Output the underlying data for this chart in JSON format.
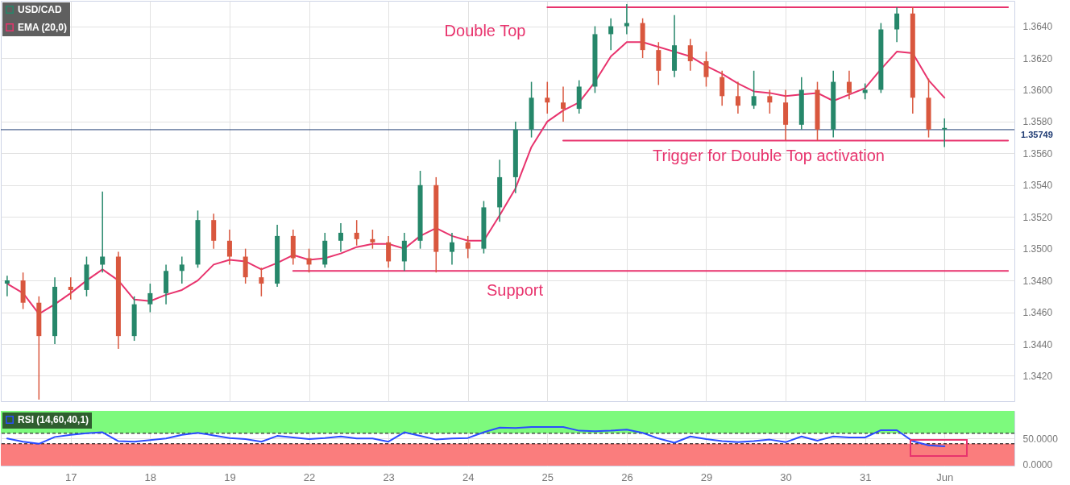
{
  "chart_data": [
    {
      "type": "candlestick",
      "series": [
        {
          "name": "USD/CAD",
          "color": "#26876a",
          "ohlc": [
            [
              1.3478,
              1.3483,
              1.347,
              1.348
            ],
            [
              1.348,
              1.3485,
              1.3462,
              1.3466
            ],
            [
              1.3466,
              1.347,
              1.3405,
              1.3445
            ],
            [
              1.3445,
              1.3482,
              1.344,
              1.3476
            ],
            [
              1.3476,
              1.3482,
              1.3468,
              1.3474
            ],
            [
              1.3474,
              1.3495,
              1.347,
              1.349
            ],
            [
              1.349,
              1.3536,
              1.3485,
              1.3495
            ],
            [
              1.3495,
              1.3498,
              1.3437,
              1.3445
            ],
            [
              1.3445,
              1.347,
              1.3442,
              1.3465
            ],
            [
              1.3465,
              1.3478,
              1.346,
              1.3472
            ],
            [
              1.3472,
              1.349,
              1.3465,
              1.3486
            ],
            [
              1.3486,
              1.3495,
              1.3478,
              1.349
            ],
            [
              1.349,
              1.3524,
              1.3488,
              1.3518
            ],
            [
              1.3518,
              1.3522,
              1.35,
              1.3505
            ],
            [
              1.3505,
              1.3512,
              1.349,
              1.3495
            ],
            [
              1.3495,
              1.35,
              1.3478,
              1.3482
            ],
            [
              1.3482,
              1.3488,
              1.347,
              1.3478
            ],
            [
              1.3478,
              1.3515,
              1.3476,
              1.3508
            ],
            [
              1.3508,
              1.3512,
              1.349,
              1.3494
            ],
            [
              1.3494,
              1.35,
              1.3485,
              1.349
            ],
            [
              1.349,
              1.351,
              1.3488,
              1.3505
            ],
            [
              1.3505,
              1.3516,
              1.3498,
              1.351
            ],
            [
              1.351,
              1.3518,
              1.3502,
              1.3506
            ],
            [
              1.3506,
              1.3512,
              1.35,
              1.3504
            ],
            [
              1.3504,
              1.3508,
              1.3488,
              1.3492
            ],
            [
              1.3492,
              1.351,
              1.3486,
              1.3505
            ],
            [
              1.3505,
              1.3549,
              1.35,
              1.354
            ],
            [
              1.354,
              1.3545,
              1.3485,
              1.3498
            ],
            [
              1.3498,
              1.351,
              1.349,
              1.3504
            ],
            [
              1.3504,
              1.3508,
              1.3494,
              1.35
            ],
            [
              1.35,
              1.353,
              1.3497,
              1.3526
            ],
            [
              1.3526,
              1.3556,
              1.3517,
              1.3545
            ],
            [
              1.3545,
              1.358,
              1.3535,
              1.3575
            ],
            [
              1.3575,
              1.3605,
              1.357,
              1.3595
            ],
            [
              1.3595,
              1.3605,
              1.3585,
              1.3592
            ],
            [
              1.3592,
              1.3602,
              1.358,
              1.3588
            ],
            [
              1.3588,
              1.3606,
              1.3585,
              1.3602
            ],
            [
              1.3602,
              1.364,
              1.3598,
              1.3635
            ],
            [
              1.3635,
              1.3645,
              1.3625,
              1.364
            ],
            [
              1.364,
              1.3654,
              1.3635,
              1.3642
            ],
            [
              1.3642,
              1.3645,
              1.362,
              1.3625
            ],
            [
              1.3625,
              1.363,
              1.3603,
              1.3612
            ],
            [
              1.3612,
              1.3647,
              1.3608,
              1.3628
            ],
            [
              1.3628,
              1.3632,
              1.3612,
              1.3618
            ],
            [
              1.3618,
              1.3624,
              1.3602,
              1.3608
            ],
            [
              1.3608,
              1.3612,
              1.359,
              1.3596
            ],
            [
              1.3596,
              1.3605,
              1.3585,
              1.359
            ],
            [
              1.359,
              1.3612,
              1.3588,
              1.3596
            ],
            [
              1.3596,
              1.36,
              1.3585,
              1.3592
            ],
            [
              1.3592,
              1.36,
              1.3568,
              1.3578
            ],
            [
              1.3578,
              1.3608,
              1.3575,
              1.36
            ],
            [
              1.36,
              1.3605,
              1.3568,
              1.3575
            ],
            [
              1.3575,
              1.3612,
              1.357,
              1.3605
            ],
            [
              1.3605,
              1.3612,
              1.3594,
              1.3598
            ],
            [
              1.3598,
              1.3604,
              1.3594,
              1.36
            ],
            [
              1.36,
              1.3642,
              1.3598,
              1.3638
            ],
            [
              1.3638,
              1.3652,
              1.363,
              1.3648
            ],
            [
              1.3648,
              1.3652,
              1.3585,
              1.3595
            ],
            [
              1.3595,
              1.3607,
              1.357,
              1.3575
            ],
            [
              1.3575,
              1.3582,
              1.3564,
              1.3576
            ],
            null,
            null,
            null,
            null
          ],
          "colors": [
            "#26876a",
            "#d9573e",
            "#d9573e",
            "#26876a",
            "#d9573e",
            "#26876a",
            "#26876a",
            "#d9573e",
            "#26876a",
            "#26876a",
            "#26876a",
            "#26876a",
            "#26876a",
            "#d9573e",
            "#d9573e",
            "#d9573e",
            "#d9573e",
            "#26876a",
            "#d9573e",
            "#d9573e",
            "#26876a",
            "#26876a",
            "#d9573e",
            "#d9573e",
            "#d9573e",
            "#26876a",
            "#26876a",
            "#d9573e",
            "#26876a",
            "#d9573e",
            "#26876a",
            "#26876a",
            "#26876a",
            "#26876a",
            "#d9573e",
            "#d9573e",
            "#26876a",
            "#26876a",
            "#26876a",
            "#26876a",
            "#d9573e",
            "#d9573e",
            "#26876a",
            "#d9573e",
            "#d9573e",
            "#d9573e",
            "#d9573e",
            "#26876a",
            "#d9573e",
            "#d9573e",
            "#26876a",
            "#d9573e",
            "#26876a",
            "#d9573e",
            "#26876a",
            "#26876a",
            "#26876a",
            "#d9573e",
            "#d9573e",
            "#26876a",
            null,
            null,
            null,
            null
          ]
        },
        {
          "name": "EMA (20,0)",
          "type": "line",
          "color": "#e8336d",
          "values": [
            1.3478,
            1.3472,
            1.3459,
            1.3465,
            1.3472,
            1.348,
            1.3487,
            1.348,
            1.3468,
            1.3467,
            1.3471,
            1.3474,
            1.348,
            1.349,
            1.3493,
            1.3492,
            1.3487,
            1.3491,
            1.3496,
            1.3493,
            1.3494,
            1.3497,
            1.3501,
            1.3503,
            1.3503,
            1.35,
            1.3508,
            1.3513,
            1.3508,
            1.3505,
            1.3505,
            1.3521,
            1.3538,
            1.3564,
            1.358,
            1.3587,
            1.3592,
            1.3605,
            1.3621,
            1.363,
            1.363,
            1.3627,
            1.3624,
            1.3621,
            1.3615,
            1.361,
            1.3604,
            1.3599,
            1.3598,
            1.3596,
            1.3597,
            1.3598,
            1.3593,
            1.3597,
            1.3601,
            1.3613,
            1.3624,
            1.3623,
            1.3606,
            1.3595,
            null,
            null,
            null,
            null
          ]
        },
        {
          "type": "line",
          "color": "#e8336d",
          "values": [
            null,
            null,
            null,
            null,
            null,
            null,
            null,
            null,
            null,
            null,
            null,
            null,
            null,
            null,
            null,
            null,
            null,
            null,
            1.3486,
            1.3486,
            1.3486,
            1.3486,
            1.3486,
            1.3486,
            1.3486,
            1.3486,
            1.3486,
            1.3486,
            1.3486,
            1.3486,
            1.3486,
            1.3486,
            1.3486,
            1.3486,
            1.3486,
            1.3486,
            1.3486,
            1.3486,
            1.3486,
            1.3486,
            1.3486,
            1.3486,
            1.3486,
            1.3486,
            1.3486,
            1.3486,
            1.3486,
            1.3486,
            1.3486,
            1.3486,
            1.3486,
            1.3486,
            1.3486,
            1.3486,
            1.3486,
            1.3486,
            1.3486,
            1.3486,
            1.3486,
            1.3486,
            1.3486,
            1.3486,
            1.3486,
            1.3486
          ]
        },
        {
          "type": "line",
          "color": "#e8336d",
          "values": [
            null,
            null,
            null,
            null,
            null,
            null,
            null,
            null,
            null,
            null,
            null,
            null,
            null,
            null,
            null,
            null,
            null,
            null,
            null,
            null,
            null,
            null,
            null,
            null,
            null,
            null,
            null,
            null,
            null,
            null,
            null,
            null,
            null,
            null,
            null,
            1.3568,
            1.3568,
            1.3568,
            1.3568,
            1.3568,
            1.3568,
            1.3568,
            1.3568,
            1.3568,
            1.3568,
            1.3568,
            1.3568,
            1.3568,
            1.3568,
            1.3568,
            1.3568,
            1.3568,
            1.3568,
            1.3568,
            1.3568,
            1.3568,
            1.3568,
            1.3568,
            1.3568,
            1.3568,
            1.3568,
            1.3568,
            1.3568,
            1.3568
          ]
        },
        {
          "type": "line",
          "color": "#e8336d",
          "values": [
            null,
            null,
            null,
            null,
            null,
            null,
            null,
            null,
            null,
            null,
            null,
            null,
            null,
            null,
            null,
            null,
            null,
            null,
            null,
            null,
            null,
            null,
            null,
            null,
            null,
            null,
            null,
            null,
            null,
            null,
            null,
            null,
            null,
            null,
            1.3652,
            1.3652,
            1.3652,
            1.3652,
            1.3652,
            1.3652,
            1.3652,
            1.3652,
            1.3652,
            1.3652,
            1.3652,
            1.3652,
            1.3652,
            1.3652,
            1.3652,
            1.3652,
            1.3652,
            1.3652,
            1.3652,
            1.3652,
            1.3652,
            1.3652,
            1.3652,
            1.3652,
            1.3652,
            1.3652,
            1.3652,
            1.3652,
            1.3652,
            1.3652
          ]
        }
      ],
      "annotations": [
        "Double Top",
        "Trigger for Double Top activation",
        "Support"
      ],
      "ref_lines": [
        {
          "axis": "y",
          "value": 1.35749,
          "label": "1.35749",
          "color": "#1f3b73"
        }
      ],
      "ylim": [
        1.3404,
        1.3656
      ],
      "yticks": [
        {
          "value": 1.342,
          "label": "1.3420"
        },
        {
          "value": 1.344,
          "label": "1.3440"
        },
        {
          "value": 1.346,
          "label": "1.3460"
        },
        {
          "value": 1.348,
          "label": "1.3480"
        },
        {
          "value": 1.35,
          "label": "1.3500"
        },
        {
          "value": 1.352,
          "label": "1.3520"
        },
        {
          "value": 1.354,
          "label": "1.3540"
        },
        {
          "value": 1.356,
          "label": "1.3560"
        },
        {
          "value": 1.358,
          "label": "1.3580"
        },
        {
          "value": 1.36,
          "label": "1.3600"
        },
        {
          "value": 1.362,
          "label": "1.3620"
        },
        {
          "value": 1.364,
          "label": "1.3640"
        }
      ],
      "grid": true,
      "legend": "top left",
      "tick_labels": "y"
    },
    {
      "type": "line",
      "categories": [
        null,
        null,
        null,
        null,
        "17",
        null,
        null,
        null,
        null,
        "18",
        null,
        null,
        null,
        null,
        "19",
        null,
        null,
        null,
        null,
        "22",
        null,
        null,
        null,
        null,
        "23",
        null,
        null,
        null,
        null,
        "24",
        null,
        null,
        null,
        null,
        "25",
        null,
        null,
        null,
        null,
        "26",
        null,
        null,
        null,
        null,
        "29",
        null,
        null,
        null,
        null,
        "30",
        null,
        null,
        null,
        null,
        "31",
        null,
        null,
        null,
        null,
        "Jun",
        null,
        null,
        null,
        null
      ],
      "series": [
        {
          "name": "RSI (14,60,40,1)",
          "color": "#2b4dff",
          "values": [
            50,
            44,
            40,
            53,
            57,
            60,
            62,
            45,
            44,
            47,
            50,
            57,
            61,
            56,
            51,
            49,
            44,
            55,
            52,
            49,
            51,
            54,
            50,
            50,
            44,
            62,
            55,
            48,
            50,
            51,
            62,
            71,
            70,
            72,
            72,
            72,
            65,
            64,
            65,
            67,
            61,
            50,
            42,
            54,
            49,
            45,
            43,
            45,
            48,
            43,
            54,
            46,
            54,
            52,
            52,
            66,
            66,
            45,
            37,
            35,
            null,
            null,
            null,
            null
          ]
        }
      ],
      "bands": [
        {
          "axis": "y",
          "from": 60,
          "to": 103,
          "color": "#7dfa7d"
        },
        {
          "axis": "y",
          "from": -2,
          "to": 40,
          "color": "#fa7d7d"
        }
      ],
      "ref_lines": [
        {
          "axis": "y",
          "value": 60,
          "color": "#000000",
          "line_style": "dashed"
        },
        {
          "axis": "y",
          "value": 40,
          "color": "#000000",
          "line_style": "dashed"
        }
      ],
      "ylim": [
        -2,
        103
      ],
      "yticks": [
        {
          "value": 0,
          "label": "0.0000"
        },
        {
          "value": 50,
          "label": "50.0000"
        }
      ],
      "grid": true,
      "legend": "top left"
    }
  ]
}
